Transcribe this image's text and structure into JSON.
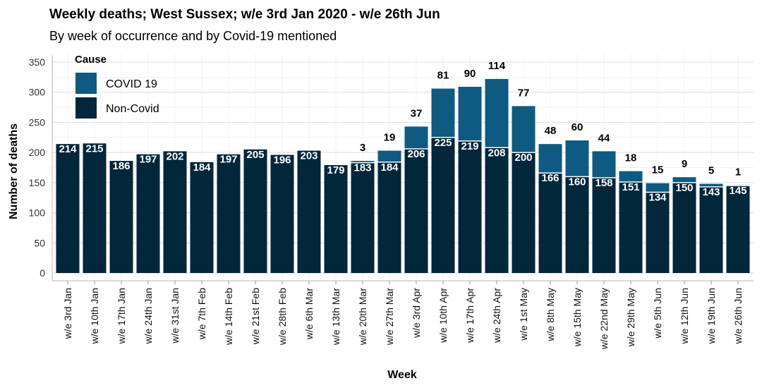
{
  "chart_data": {
    "type": "bar",
    "stacked": true,
    "title": "Weekly deaths; West Sussex; w/e 3rd Jan 2020 - w/e 26th Jun",
    "subtitle": "By week of occurrence and by Covid-19 mentioned",
    "xlabel": "Week",
    "ylabel": "Number of deaths",
    "ylim": [
      0,
      350
    ],
    "yticks": [
      0,
      50,
      100,
      150,
      200,
      250,
      300,
      350
    ],
    "grid": "horizontal",
    "legend": {
      "title": "Cause",
      "placement": "top-left"
    },
    "categories": [
      "w/e 3rd Jan",
      "w/e 10th Jan",
      "w/e 17th Jan",
      "w/e 24th Jan",
      "w/e 31st Jan",
      "w/e 7th Feb",
      "w/e 14th Feb",
      "w/e 21st Feb",
      "w/e 28th Feb",
      "w/e 6th Mar",
      "w/e 13th Mar",
      "w/e 20th Mar",
      "w/e 27th Mar",
      "w/e 3rd Apr",
      "w/e 10th Apr",
      "w/e 17th Apr",
      "w/e 24th Apr",
      "w/e 1st May",
      "w/e 8th May",
      "w/e 15th May",
      "w/e 22nd May",
      "w/e 29th May",
      "w/e 5th Jun",
      "w/e 12th Jun",
      "w/e 19th Jun",
      "w/e 26th Jun"
    ],
    "series": [
      {
        "name": "Non-Covid",
        "color": "#02263a",
        "values": [
          214,
          215,
          186,
          197,
          202,
          184,
          197,
          205,
          196,
          203,
          179,
          183,
          184,
          206,
          225,
          219,
          208,
          200,
          166,
          160,
          158,
          151,
          134,
          150,
          143,
          145
        ]
      },
      {
        "name": "COVID 19",
        "color": "#0f5a80",
        "values": [
          0,
          0,
          0,
          0,
          0,
          0,
          0,
          0,
          0,
          0,
          0,
          3,
          19,
          37,
          81,
          90,
          114,
          77,
          48,
          60,
          44,
          18,
          15,
          9,
          5,
          1
        ]
      }
    ]
  }
}
